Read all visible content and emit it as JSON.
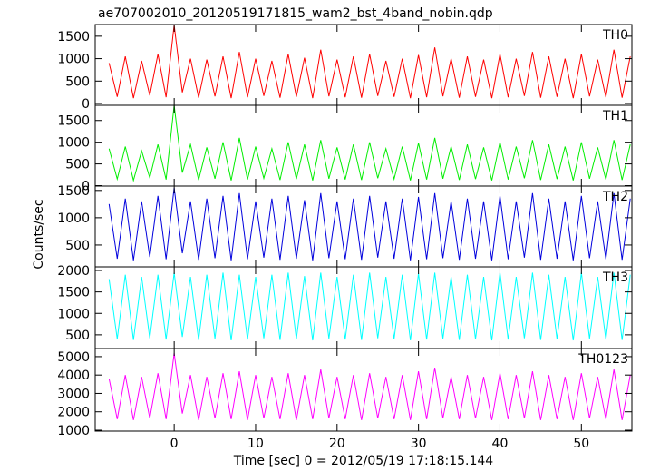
{
  "chart_data": {
    "type": "line",
    "title": "ae707002010_20120519171815_wam2_bst_4band_nobin.qdp",
    "xlabel": "Time [sec] 0 = 2012/05/19 17:18:15.144",
    "ylabel": "Counts/sec",
    "xlim": [
      -9.7,
      56.2
    ],
    "xticks": [
      0,
      10,
      20,
      30,
      40,
      50
    ],
    "x": [
      -8,
      -7,
      -6,
      -5,
      -4,
      -3,
      -2,
      -1,
      0,
      1,
      2,
      3,
      4,
      5,
      6,
      7,
      8,
      9,
      10,
      11,
      12,
      13,
      14,
      15,
      16,
      17,
      18,
      19,
      20,
      21,
      22,
      23,
      24,
      25,
      26,
      27,
      28,
      29,
      30,
      31,
      32,
      33,
      34,
      35,
      36,
      37,
      38,
      39,
      40,
      41,
      42,
      43,
      44,
      45,
      46,
      47,
      48,
      49,
      50,
      51,
      52,
      53,
      54,
      55,
      56
    ],
    "panels": [
      {
        "ylim": [
          -40,
          1760
        ],
        "yticks": [
          0,
          500,
          1000,
          1500
        ],
        "series": [
          {
            "name": "TH0",
            "color": "#ff0000",
            "values": [
              900,
              150,
              1050,
              120,
              950,
              180,
              1100,
              140,
              1750,
              250,
              1000,
              130,
              980,
              160,
              1050,
              120,
              1150,
              140,
              1000,
              170,
              950,
              130,
              1100,
              150,
              1020,
              120,
              1200,
              160,
              980,
              140,
              1050,
              130,
              1100,
              170,
              950,
              150,
              1000,
              120,
              1080,
              140,
              1250,
              160,
              1000,
              130,
              1050,
              150,
              980,
              120,
              1100,
              140,
              1000,
              170,
              1150,
              130,
              1050,
              150,
              1000,
              120,
              1100,
              160,
              980,
              140,
              1200,
              130,
              1050
            ]
          }
        ]
      },
      {
        "ylim": [
          -10,
          1850
        ],
        "yticks": [
          0,
          500,
          1000,
          1500
        ],
        "series": [
          {
            "name": "TH1",
            "color": "#00ee00",
            "values": [
              850,
              150,
              900,
              120,
              800,
              180,
              950,
              140,
              1850,
              300,
              950,
              130,
              880,
              160,
              1000,
              120,
              1100,
              140,
              900,
              170,
              850,
              130,
              1000,
              150,
              950,
              120,
              1050,
              160,
              880,
              140,
              950,
              130,
              1000,
              170,
              850,
              150,
              900,
              120,
              980,
              140,
              1100,
              160,
              900,
              130,
              950,
              150,
              880,
              120,
              1000,
              140,
              900,
              170,
              1050,
              130,
              950,
              150,
              900,
              120,
              1000,
              160,
              880,
              140,
              1050,
              130,
              950
            ]
          }
        ]
      },
      {
        "ylim": [
          100,
          1580
        ],
        "yticks": [
          500,
          1000,
          1500
        ],
        "series": [
          {
            "name": "TH2",
            "color": "#0000dd",
            "values": [
              1250,
              250,
              1350,
              220,
              1300,
              280,
              1400,
              240,
              1550,
              350,
              1300,
              230,
              1350,
              260,
              1400,
              220,
              1450,
              240,
              1300,
              270,
              1350,
              230,
              1400,
              250,
              1320,
              220,
              1450,
              260,
              1300,
              240,
              1350,
              230,
              1400,
              270,
              1300,
              250,
              1350,
              220,
              1380,
              240,
              1450,
              260,
              1300,
              230,
              1350,
              250,
              1300,
              220,
              1400,
              240,
              1300,
              270,
              1450,
              230,
              1350,
              250,
              1300,
              220,
              1400,
              260,
              1300,
              240,
              1450,
              230,
              1350
            ]
          }
        ]
      },
      {
        "ylim": [
          180,
          2085
        ],
        "yticks": [
          500,
          1000,
          1500,
          2000
        ],
        "series": [
          {
            "name": "TH3",
            "color": "#00ffff",
            "values": [
              1800,
              400,
              1900,
              380,
              1850,
              420,
              1900,
              390,
              1950,
              450,
              1850,
              380,
              1900,
              410,
              1950,
              370,
              1900,
              390,
              1850,
              420,
              1900,
              380,
              1950,
              400,
              1870,
              370,
              1950,
              410,
              1850,
              390,
              1900,
              380,
              1950,
              420,
              1850,
              400,
              1900,
              370,
              1930,
              390,
              1950,
              410,
              1850,
              380,
              1900,
              400,
              1850,
              370,
              1950,
              390,
              1850,
              420,
              1950,
              380,
              1900,
              400,
              1850,
              370,
              1950,
              410,
              1850,
              390,
              1950,
              380,
              1900
            ]
          }
        ]
      },
      {
        "ylim": [
          950,
          5440
        ],
        "yticks": [
          1000,
          2000,
          3000,
          4000,
          5000
        ],
        "series": [
          {
            "name": "TH0123",
            "color": "#ff00ff",
            "values": [
              3800,
              1600,
              4000,
              1550,
              3900,
              1650,
              4100,
              1600,
              5200,
              1900,
              4000,
              1550,
              3900,
              1650,
              4100,
              1600,
              4200,
              1550,
              4000,
              1650,
              3900,
              1600,
              4100,
              1550,
              4000,
              1600,
              4300,
              1650,
              3900,
              1600,
              4000,
              1550,
              4100,
              1650,
              3900,
              1600,
              4000,
              1550,
              4200,
              1600,
              4400,
              1650,
              3900,
              1600,
              4000,
              1650,
              3900,
              1550,
              4100,
              1600,
              4000,
              1650,
              4200,
              1550,
              4000,
              1600,
              3900,
              1550,
              4100,
              1650,
              3900,
              1600,
              4300,
              1550,
              4000
            ]
          }
        ]
      }
    ]
  }
}
